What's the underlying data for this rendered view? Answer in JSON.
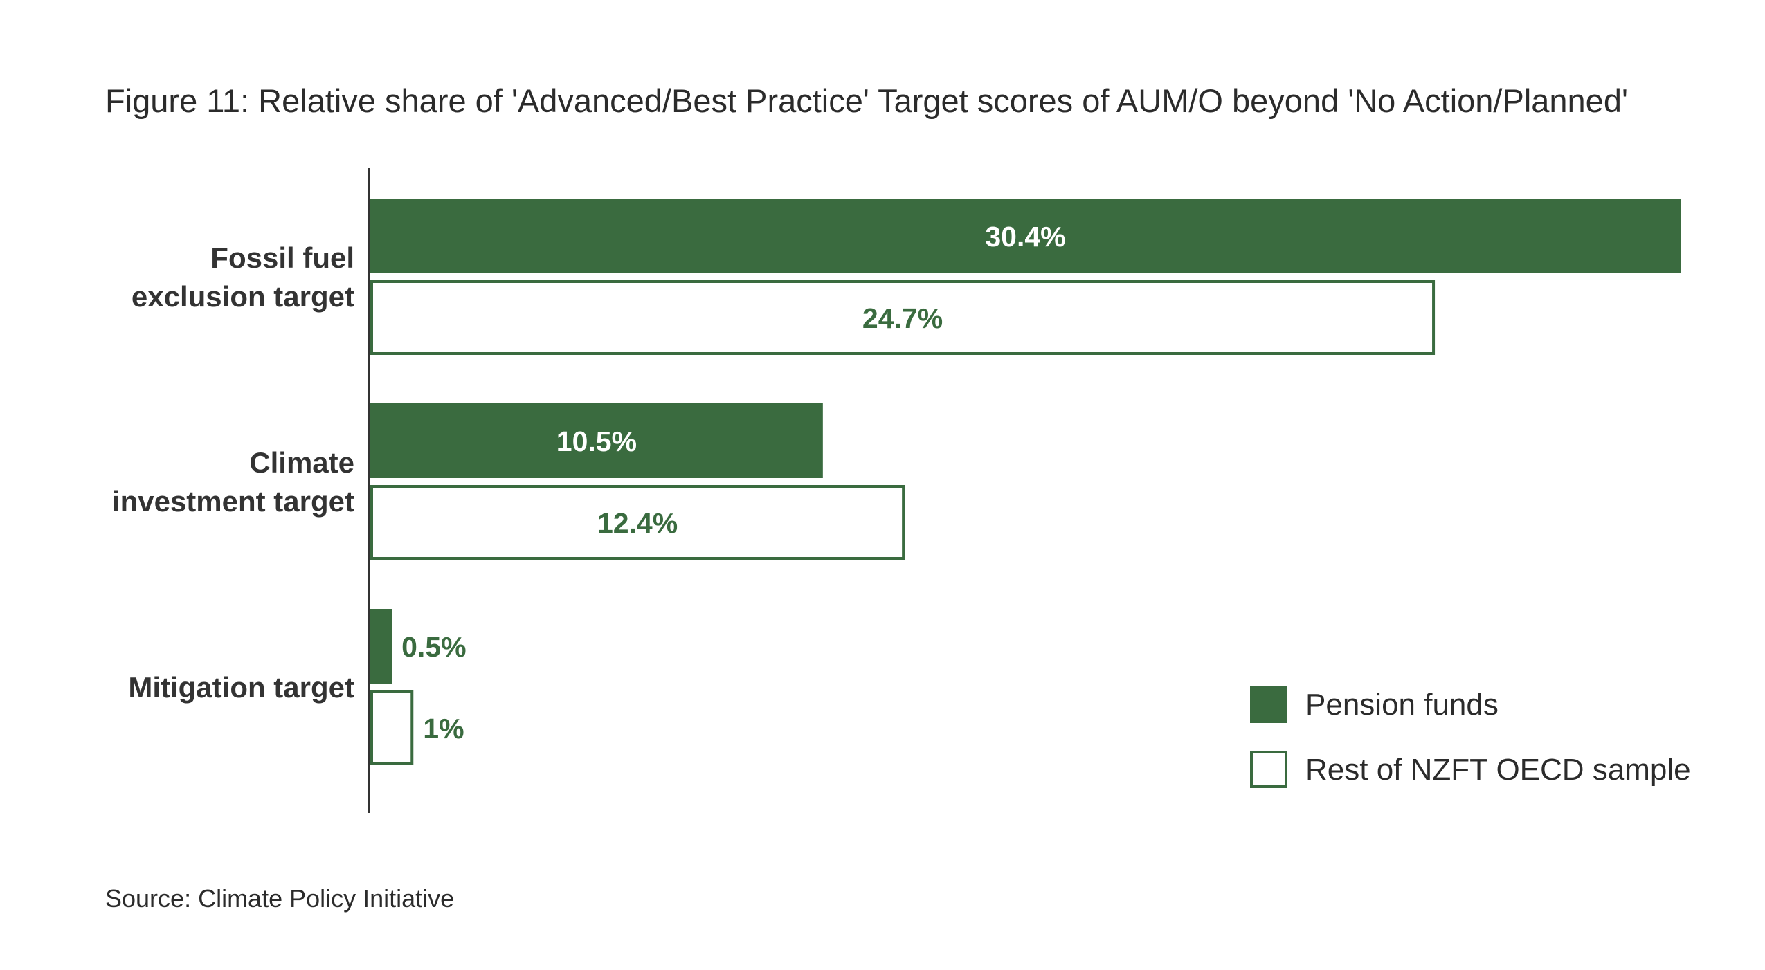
{
  "chart_data": {
    "type": "bar",
    "orientation": "horizontal",
    "title": "Figure 11: Relative share of 'Advanced/Best Practice' Target scores of AUM/O beyond 'No Action/Planned'",
    "source": "Source: Climate Policy Initiative",
    "categories": [
      [
        "Fossil fuel",
        "exclusion target"
      ],
      [
        "Climate",
        "investment target"
      ],
      [
        "Mitigation target"
      ]
    ],
    "series": [
      {
        "name": "Pension funds",
        "values": [
          30.4,
          10.5,
          0.5
        ],
        "labels": [
          "30.4%",
          "10.5%",
          "0.5%"
        ],
        "style": "filled"
      },
      {
        "name": "Rest of NZFT OECD sample",
        "values": [
          24.7,
          12.4,
          1
        ],
        "labels": [
          "24.7%",
          "12.4%",
          "1%"
        ],
        "style": "outline"
      }
    ],
    "xlim": [
      0,
      30.4
    ],
    "grid": false,
    "x_axis_visible": false,
    "legend_position": "bottom-right"
  },
  "colors": {
    "accent": "#3a6b3f",
    "text": "#2b2b2b",
    "category_text": "#333333",
    "axis": "#333333",
    "inside_label": "#ffffff",
    "background": "#ffffff"
  }
}
